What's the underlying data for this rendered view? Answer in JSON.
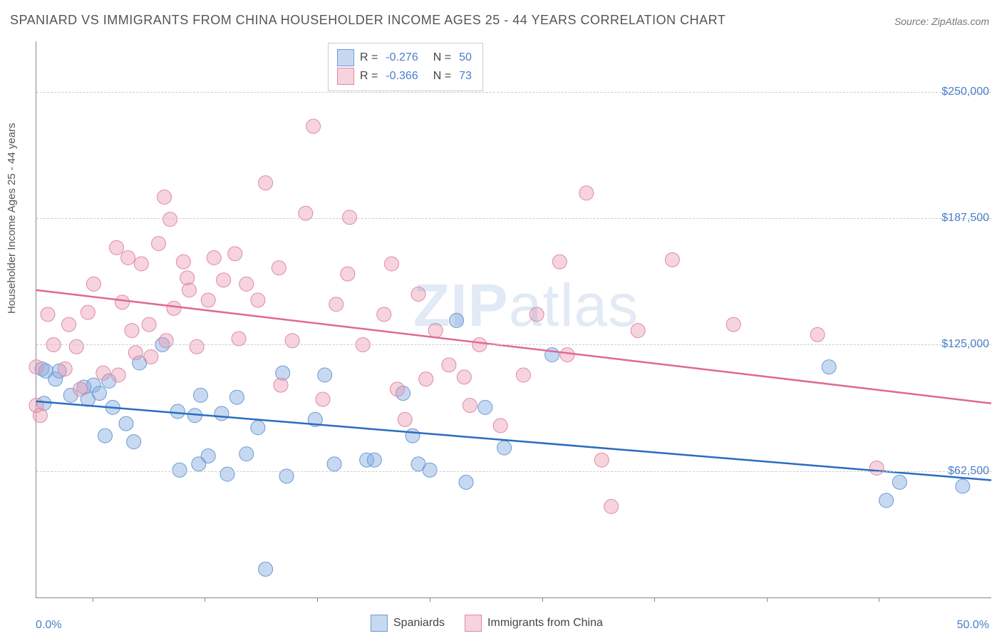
{
  "title": "SPANIARD VS IMMIGRANTS FROM CHINA HOUSEHOLDER INCOME AGES 25 - 44 YEARS CORRELATION CHART",
  "source": "Source: ZipAtlas.com",
  "watermark_a": "ZIP",
  "watermark_b": "atlas",
  "ylabel": "Householder Income Ages 25 - 44 years",
  "chart": {
    "type": "scatter",
    "background_color": "#ffffff",
    "grid_color": "#cccccc",
    "axis_color": "#888888",
    "label_color": "#555555",
    "tick_label_color": "#4a7ec9",
    "font_family": "Arial",
    "title_fontsize": 18,
    "tick_fontsize": 16,
    "ylabel_fontsize": 15,
    "xlim": [
      0,
      50
    ],
    "ylim": [
      0,
      275000
    ],
    "x_axis": {
      "min_label": "0.0%",
      "max_label": "50.0%",
      "tick_positions_pct": [
        5.9,
        17.6,
        29.4,
        41.2,
        53.0,
        64.7,
        76.5,
        88.2
      ]
    },
    "y_gridlines": [
      {
        "value": 62500,
        "label": "$62,500"
      },
      {
        "value": 125000,
        "label": "$125,000"
      },
      {
        "value": 187500,
        "label": "$187,500"
      },
      {
        "value": 250000,
        "label": "$250,000"
      }
    ],
    "series": [
      {
        "name": "Spaniards",
        "fill": "rgba(130,170,225,0.45)",
        "stroke": "#6a9ad4",
        "line_color": "#2a6cc0",
        "marker_radius": 10,
        "line_width": 2.5,
        "r": -0.276,
        "n": 50,
        "trend": {
          "y_at_xmin": 97000,
          "y_at_xmax": 58000
        },
        "points": [
          [
            0.3,
            113000
          ],
          [
            0.4,
            96000
          ],
          [
            0.5,
            112000
          ],
          [
            1.0,
            108000
          ],
          [
            1.2,
            112000
          ],
          [
            1.8,
            100000
          ],
          [
            2.5,
            104000
          ],
          [
            2.7,
            98000
          ],
          [
            3.0,
            105000
          ],
          [
            3.3,
            101000
          ],
          [
            3.6,
            80000
          ],
          [
            3.8,
            107000
          ],
          [
            4.0,
            94000
          ],
          [
            4.7,
            86000
          ],
          [
            5.1,
            77000
          ],
          [
            5.4,
            116000
          ],
          [
            6.6,
            125000
          ],
          [
            7.4,
            92000
          ],
          [
            7.5,
            63000
          ],
          [
            8.3,
            90000
          ],
          [
            8.5,
            66000
          ],
          [
            8.6,
            100000
          ],
          [
            9.0,
            70000
          ],
          [
            9.7,
            91000
          ],
          [
            10.0,
            61000
          ],
          [
            10.5,
            99000
          ],
          [
            11.0,
            71000
          ],
          [
            11.6,
            84000
          ],
          [
            12.0,
            14000
          ],
          [
            12.9,
            111000
          ],
          [
            13.1,
            60000
          ],
          [
            14.6,
            88000
          ],
          [
            15.1,
            110000
          ],
          [
            15.6,
            66000
          ],
          [
            17.3,
            68000
          ],
          [
            17.7,
            68000
          ],
          [
            19.2,
            101000
          ],
          [
            19.7,
            80000
          ],
          [
            20.0,
            66000
          ],
          [
            20.6,
            63000
          ],
          [
            22.0,
            137000
          ],
          [
            22.5,
            57000
          ],
          [
            23.5,
            94000
          ],
          [
            24.5,
            74000
          ],
          [
            27.0,
            120000
          ],
          [
            41.5,
            114000
          ],
          [
            44.5,
            48000
          ],
          [
            45.2,
            57000
          ],
          [
            48.5,
            55000
          ]
        ]
      },
      {
        "name": "Immigrants from China",
        "fill": "rgba(235,150,175,0.42)",
        "stroke": "#dd8aa6",
        "line_color": "#e06a8e",
        "marker_radius": 10,
        "line_width": 2.5,
        "r": -0.366,
        "n": 73,
        "trend": {
          "y_at_xmin": 152000,
          "y_at_xmax": 96000
        },
        "points": [
          [
            0.0,
            114000
          ],
          [
            0.0,
            95000
          ],
          [
            0.2,
            90000
          ],
          [
            0.6,
            140000
          ],
          [
            0.9,
            125000
          ],
          [
            1.5,
            113000
          ],
          [
            1.7,
            135000
          ],
          [
            2.1,
            124000
          ],
          [
            2.3,
            103000
          ],
          [
            2.7,
            141000
          ],
          [
            3.0,
            155000
          ],
          [
            3.5,
            111000
          ],
          [
            4.2,
            173000
          ],
          [
            4.3,
            110000
          ],
          [
            4.5,
            146000
          ],
          [
            4.8,
            168000
          ],
          [
            5.0,
            132000
          ],
          [
            5.2,
            121000
          ],
          [
            5.5,
            165000
          ],
          [
            5.9,
            135000
          ],
          [
            6.0,
            119000
          ],
          [
            6.4,
            175000
          ],
          [
            6.7,
            198000
          ],
          [
            6.8,
            127000
          ],
          [
            7.0,
            187000
          ],
          [
            7.2,
            143000
          ],
          [
            7.7,
            166000
          ],
          [
            7.9,
            158000
          ],
          [
            8.0,
            152000
          ],
          [
            8.4,
            124000
          ],
          [
            9.0,
            147000
          ],
          [
            9.3,
            168000
          ],
          [
            9.8,
            157000
          ],
          [
            10.4,
            170000
          ],
          [
            10.6,
            128000
          ],
          [
            11.0,
            155000
          ],
          [
            11.6,
            147000
          ],
          [
            12.0,
            205000
          ],
          [
            12.7,
            163000
          ],
          [
            12.8,
            105000
          ],
          [
            13.4,
            127000
          ],
          [
            14.1,
            190000
          ],
          [
            14.5,
            233000
          ],
          [
            15.0,
            98000
          ],
          [
            15.7,
            145000
          ],
          [
            16.3,
            160000
          ],
          [
            16.4,
            188000
          ],
          [
            17.1,
            125000
          ],
          [
            18.2,
            140000
          ],
          [
            18.6,
            165000
          ],
          [
            18.9,
            103000
          ],
          [
            19.3,
            88000
          ],
          [
            20.0,
            150000
          ],
          [
            20.4,
            108000
          ],
          [
            20.9,
            132000
          ],
          [
            21.6,
            115000
          ],
          [
            22.4,
            109000
          ],
          [
            22.7,
            95000
          ],
          [
            23.2,
            125000
          ],
          [
            24.3,
            85000
          ],
          [
            25.5,
            110000
          ],
          [
            26.2,
            140000
          ],
          [
            27.4,
            166000
          ],
          [
            27.8,
            120000
          ],
          [
            28.8,
            200000
          ],
          [
            29.6,
            68000
          ],
          [
            30.1,
            45000
          ],
          [
            31.5,
            132000
          ],
          [
            33.3,
            167000
          ],
          [
            36.5,
            135000
          ],
          [
            40.9,
            130000
          ],
          [
            44.0,
            64000
          ]
        ]
      }
    ]
  },
  "legend_top": {
    "r_label": "R =",
    "n_label": "N ="
  },
  "legend_bottom": {
    "items": [
      "Spaniards",
      "Immigrants from China"
    ]
  }
}
